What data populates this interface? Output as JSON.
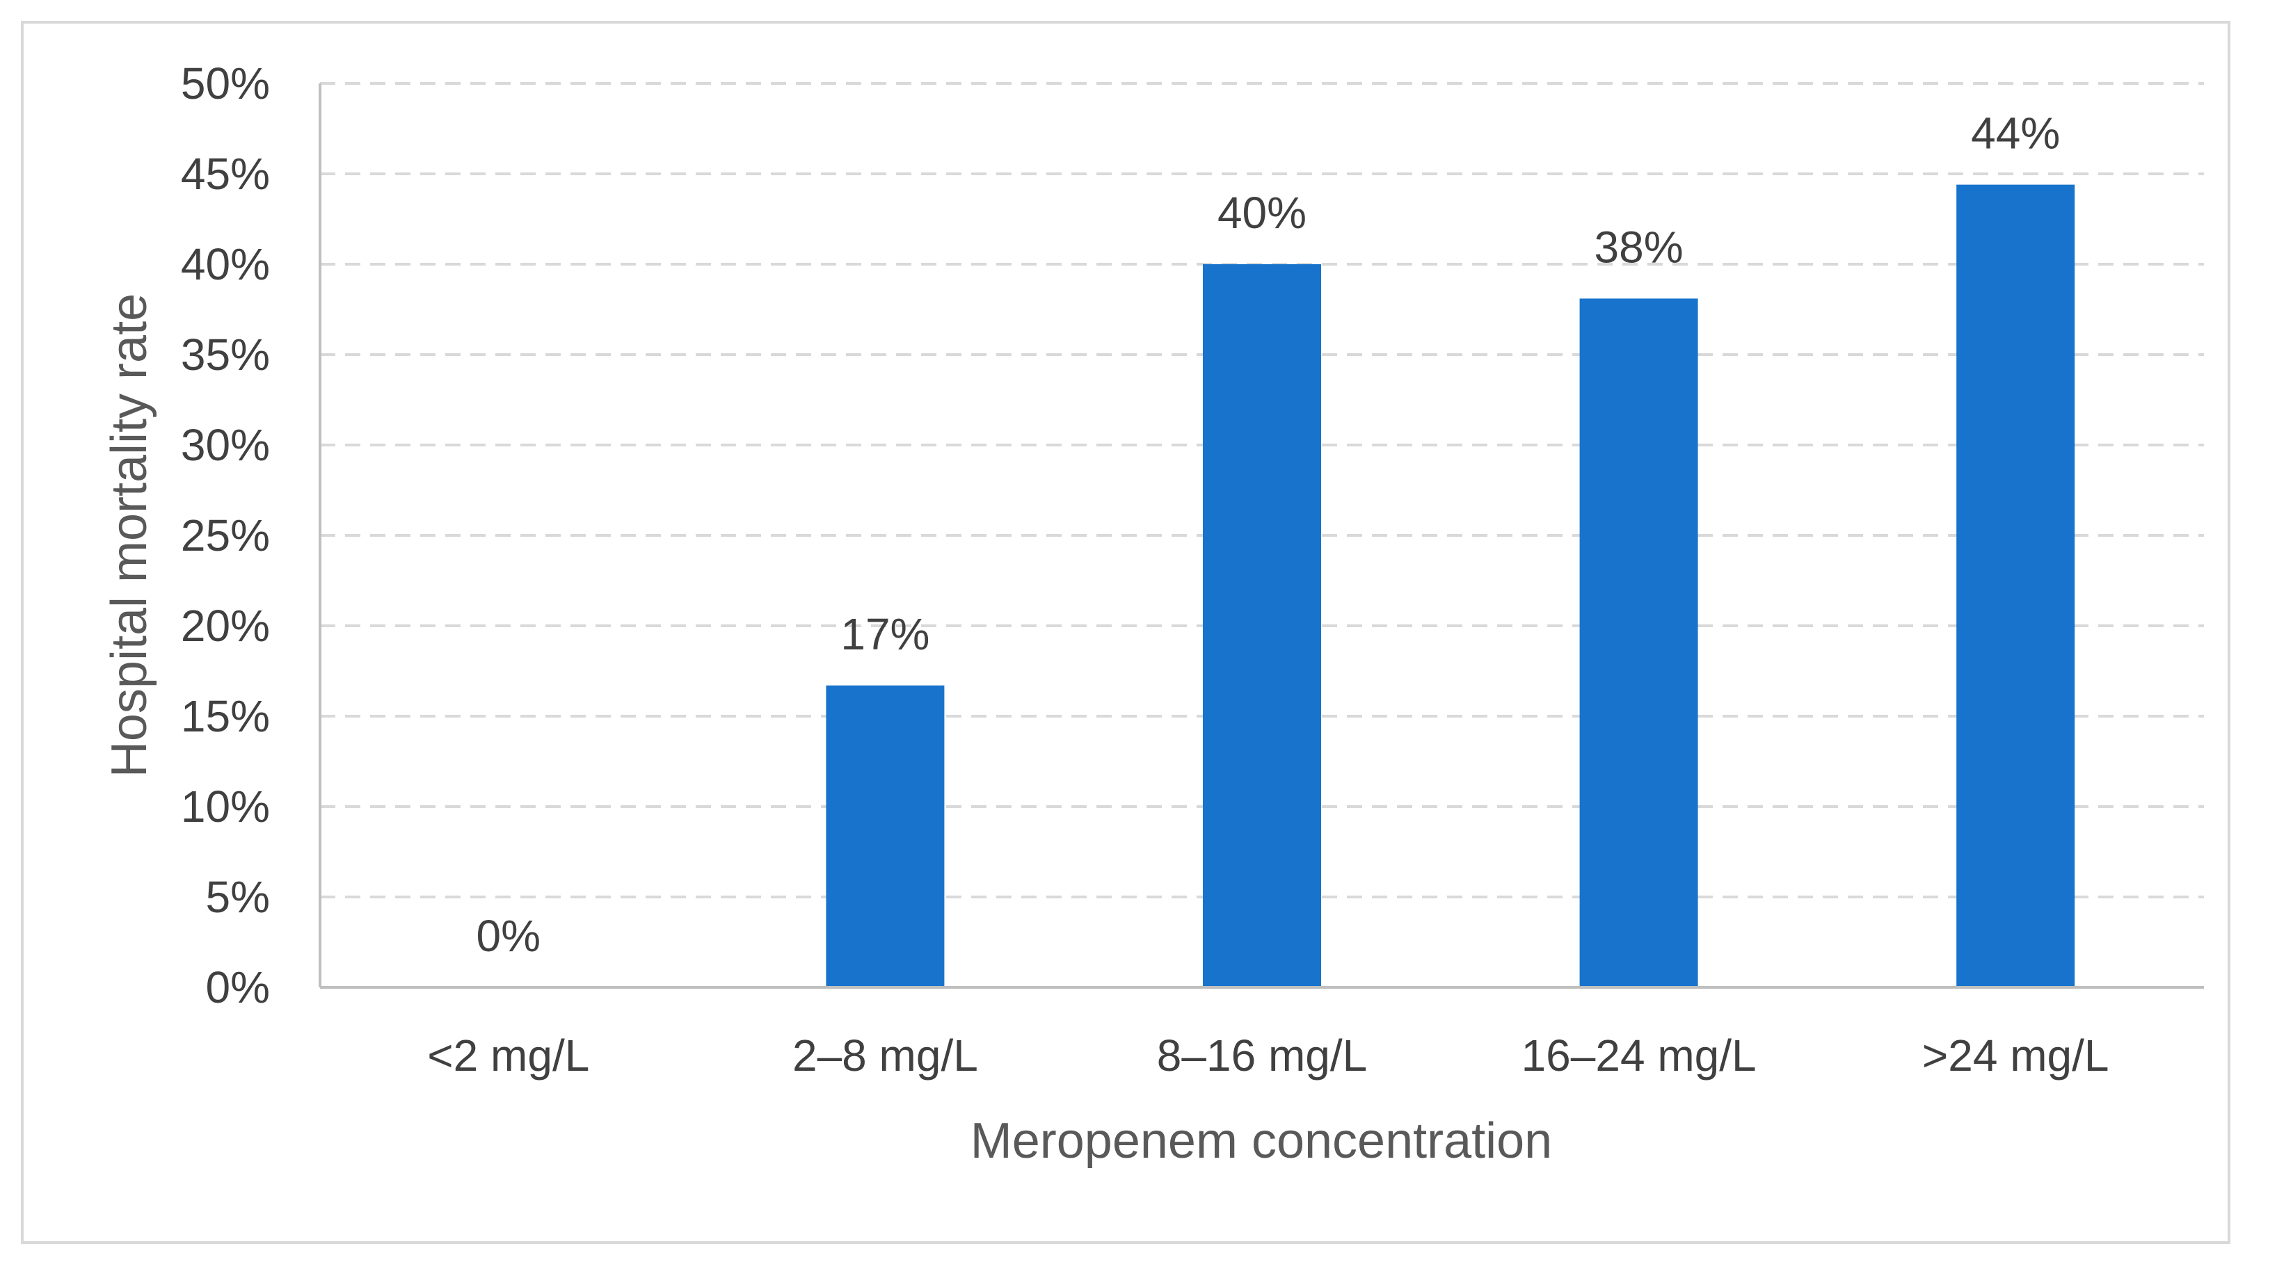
{
  "chart_data": {
    "type": "bar",
    "title": "",
    "xlabel": "Meropenem concentration",
    "ylabel": "Hospital mortality rate",
    "categories": [
      "<2 mg/L",
      "2–8 mg/L",
      "8–16 mg/L",
      "16–24 mg/L",
      ">24 mg/L"
    ],
    "values": [
      0,
      16.7,
      40,
      38.1,
      44.4
    ],
    "data_labels": [
      "0%",
      "17%",
      "40%",
      "38%",
      "44%"
    ],
    "ylim": [
      0,
      50
    ],
    "yticks": [
      0,
      5,
      10,
      15,
      20,
      25,
      30,
      35,
      40,
      45,
      50
    ],
    "ytick_labels": [
      "0%",
      "5%",
      "10%",
      "15%",
      "20%",
      "25%",
      "30%",
      "35%",
      "40%",
      "45%",
      "50%"
    ],
    "grid": true,
    "grid_style": "dashed",
    "legend": "none",
    "bar_color": "#1773cc",
    "gridline_color": "#d9d9d9",
    "axis_color": "#bfbfbf"
  }
}
